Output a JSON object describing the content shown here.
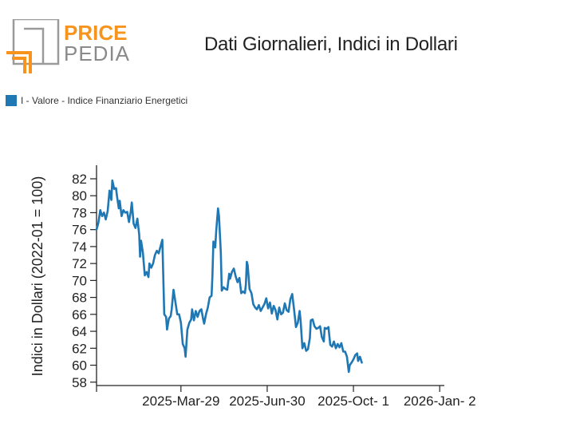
{
  "logo": {
    "word1": "PRICE",
    "word2": "PEDIA",
    "accent_color": "#f7941d",
    "gray_color": "#8a8a8a"
  },
  "header": {
    "title": "Dati Giornalieri, Indici in Dollari"
  },
  "legend": {
    "label": "I - Valore - Indice Finanziario Energetici",
    "color": "#1f77b4"
  },
  "chart_data": {
    "type": "line",
    "title": "Dati Giornalieri, Indici in Dollari",
    "ylabel": "Indici in Dollari (2022-01 = 100)",
    "xlabel": "",
    "ylim": [
      57.6,
      83.6
    ],
    "y_ticks": [
      58,
      60,
      62,
      64,
      66,
      68,
      70,
      72,
      74,
      76,
      78,
      80,
      82
    ],
    "x_range_days": [
      0,
      375
    ],
    "x_ticks": [
      {
        "day": 91,
        "label": "2025-Mar-29"
      },
      {
        "day": 184,
        "label": "2025-Jun-30"
      },
      {
        "day": 277,
        "label": "2025-Oct- 1"
      },
      {
        "day": 370,
        "label": "2026-Jan- 2"
      }
    ],
    "series": [
      {
        "name": "I - Valore - Indice Finanziario Energetici",
        "color": "#1f77b4",
        "points": [
          [
            0,
            76.0
          ],
          [
            2,
            76.8
          ],
          [
            4,
            78.3
          ],
          [
            6,
            77.6
          ],
          [
            8,
            78.0
          ],
          [
            10,
            77.2
          ],
          [
            12,
            78.2
          ],
          [
            14,
            80.6
          ],
          [
            16,
            79.5
          ],
          [
            17,
            81.8
          ],
          [
            19,
            80.8
          ],
          [
            21,
            80.9
          ],
          [
            22,
            80.0
          ],
          [
            24,
            78.5
          ],
          [
            25,
            79.4
          ],
          [
            27,
            77.6
          ],
          [
            29,
            78.3
          ],
          [
            31,
            78.0
          ],
          [
            33,
            78.1
          ],
          [
            35,
            76.9
          ],
          [
            37,
            78.2
          ],
          [
            38,
            79.2
          ],
          [
            40,
            76.7
          ],
          [
            42,
            76.2
          ],
          [
            44,
            77.3
          ],
          [
            46,
            75.4
          ],
          [
            47,
            72.8
          ],
          [
            48,
            74.7
          ],
          [
            50,
            73.3
          ],
          [
            52,
            70.6
          ],
          [
            54,
            71.0
          ],
          [
            56,
            70.4
          ],
          [
            57,
            72.0
          ],
          [
            59,
            71.5
          ],
          [
            61,
            72.0
          ],
          [
            63,
            73.0
          ],
          [
            65,
            73.5
          ],
          [
            67,
            73.2
          ],
          [
            69,
            74.0
          ],
          [
            71,
            74.8
          ],
          [
            73,
            66.0
          ],
          [
            75,
            65.7
          ],
          [
            76,
            64.2
          ],
          [
            78,
            65.5
          ],
          [
            80,
            65.8
          ],
          [
            81,
            66.6
          ],
          [
            83,
            68.9
          ],
          [
            85,
            67.5
          ],
          [
            87,
            66.0
          ],
          [
            89,
            66.0
          ],
          [
            91,
            65.0
          ],
          [
            93,
            62.5
          ],
          [
            95,
            62.0
          ],
          [
            96,
            61.0
          ],
          [
            98,
            64.2
          ],
          [
            100,
            65.0
          ],
          [
            102,
            65.4
          ],
          [
            103,
            66.6
          ],
          [
            105,
            65.3
          ],
          [
            107,
            66.4
          ],
          [
            109,
            65.7
          ],
          [
            111,
            66.4
          ],
          [
            113,
            66.6
          ],
          [
            115,
            65.4
          ],
          [
            116,
            64.9
          ],
          [
            118,
            66.0
          ],
          [
            120,
            66.8
          ],
          [
            122,
            68.0
          ],
          [
            124,
            68.2
          ],
          [
            125,
            70.6
          ],
          [
            126,
            74.6
          ],
          [
            128,
            73.9
          ],
          [
            129,
            75.8
          ],
          [
            131,
            78.5
          ],
          [
            132,
            77.6
          ],
          [
            134,
            73.3
          ],
          [
            135,
            68.8
          ],
          [
            137,
            69.2
          ],
          [
            139,
            69.0
          ],
          [
            141,
            68.9
          ],
          [
            143,
            70.8
          ],
          [
            144,
            70.2
          ],
          [
            146,
            71.0
          ],
          [
            148,
            71.4
          ],
          [
            150,
            70.5
          ],
          [
            152,
            69.8
          ],
          [
            154,
            70.3
          ],
          [
            156,
            68.5
          ],
          [
            158,
            68.7
          ],
          [
            160,
            68.5
          ],
          [
            161,
            69.5
          ],
          [
            162,
            72.2
          ],
          [
            163,
            71.8
          ],
          [
            165,
            69.0
          ],
          [
            167,
            68.5
          ],
          [
            169,
            67.2
          ],
          [
            171,
            66.8
          ],
          [
            173,
            66.6
          ],
          [
            175,
            67.1
          ],
          [
            177,
            66.4
          ],
          [
            179,
            66.8
          ],
          [
            181,
            67.2
          ],
          [
            183,
            67.9
          ],
          [
            185,
            66.7
          ],
          [
            187,
            67.4
          ],
          [
            189,
            66.1
          ],
          [
            191,
            67.0
          ],
          [
            193,
            66.5
          ],
          [
            195,
            65.4
          ],
          [
            197,
            66.8
          ],
          [
            199,
            66.0
          ],
          [
            201,
            66.2
          ],
          [
            203,
            67.3
          ],
          [
            205,
            66.5
          ],
          [
            207,
            66.3
          ],
          [
            209,
            67.8
          ],
          [
            211,
            68.4
          ],
          [
            213,
            66.6
          ],
          [
            215,
            64.5
          ],
          [
            217,
            65.0
          ],
          [
            219,
            66.4
          ],
          [
            220,
            65.3
          ],
          [
            222,
            62.0
          ],
          [
            224,
            62.6
          ],
          [
            226,
            61.7
          ],
          [
            228,
            61.9
          ],
          [
            230,
            63.2
          ],
          [
            231,
            65.3
          ],
          [
            233,
            65.4
          ],
          [
            235,
            64.6
          ],
          [
            237,
            64.3
          ],
          [
            239,
            64.4
          ],
          [
            241,
            64.6
          ],
          [
            243,
            63.3
          ],
          [
            245,
            62.8
          ],
          [
            246,
            64.4
          ],
          [
            248,
            64.3
          ],
          [
            250,
            64.5
          ],
          [
            252,
            62.4
          ],
          [
            254,
            62.2
          ],
          [
            256,
            62.8
          ],
          [
            258,
            62.0
          ],
          [
            260,
            62.5
          ],
          [
            262,
            62.1
          ],
          [
            264,
            62.6
          ],
          [
            266,
            61.6
          ],
          [
            268,
            61.6
          ],
          [
            270,
            61.0
          ],
          [
            272,
            59.2
          ],
          [
            273,
            60.0
          ],
          [
            275,
            60.3
          ],
          [
            277,
            60.7
          ],
          [
            279,
            61.2
          ],
          [
            281,
            61.4
          ],
          [
            282,
            60.5
          ],
          [
            284,
            61.0
          ],
          [
            286,
            60.3
          ]
        ]
      }
    ]
  }
}
